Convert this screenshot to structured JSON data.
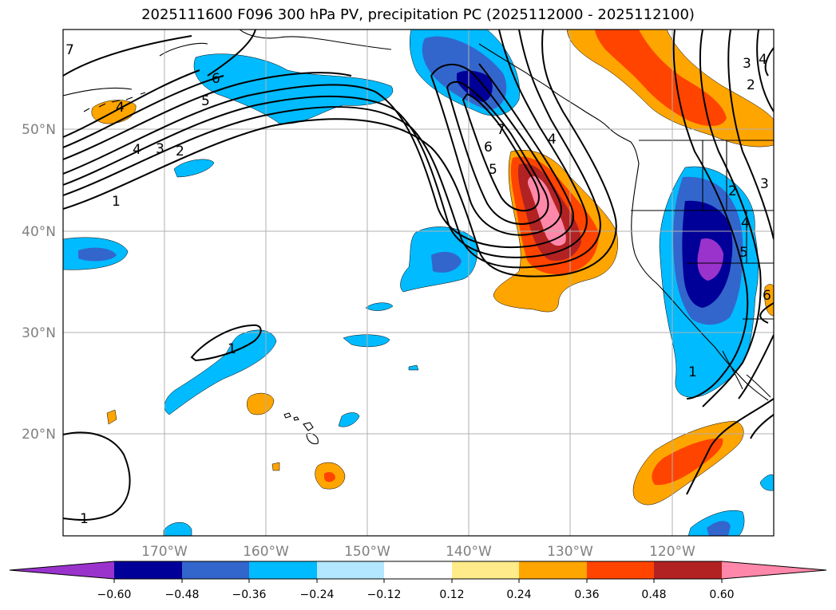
{
  "title": "2025111600 F096 300 hPa PV, precipitation PC (2025112000 - 2025112100)",
  "colors": {
    "neg060": "#9933cc",
    "neg048": "#000099",
    "neg036": "#3366cc",
    "neg024": "#00bbff",
    "neg012": "#b3e6ff",
    "zero": "#ffffff",
    "pos012": "#ffeb8a",
    "pos024": "#ffa500",
    "pos036": "#ff4400",
    "pos048": "#b22222",
    "pos060": "#ff88aa",
    "gridline": "#b0b0b0",
    "axis_label": "#808080",
    "contour": "#000000"
  },
  "axes": {
    "lat_labels": [
      "50°N",
      "40°N",
      "30°N",
      "20°N"
    ],
    "lon_labels": [
      "170°W",
      "160°W",
      "150°W",
      "140°W",
      "130°W",
      "120°W"
    ]
  },
  "colorbar": {
    "ticks": [
      "−0.60",
      "−0.48",
      "−0.36",
      "−0.24",
      "−0.12",
      "0.12",
      "0.24",
      "0.36",
      "0.48",
      "0.60"
    ]
  },
  "contour_labels": [
    "7",
    "6",
    "5",
    "4",
    "3",
    "2",
    "1",
    "1",
    "4",
    "7",
    "6",
    "5",
    "4",
    "2",
    "4",
    "3",
    "2",
    "1",
    "1",
    "4",
    "5",
    "3",
    "6"
  ]
}
